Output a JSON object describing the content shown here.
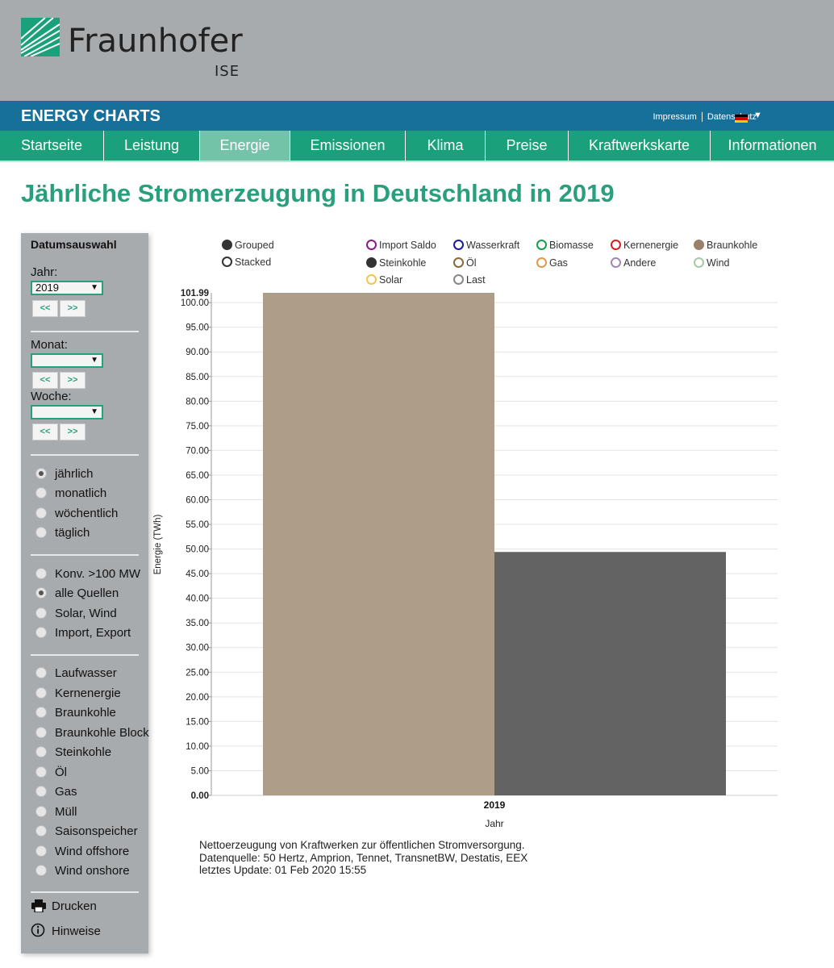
{
  "header": {
    "logo_name": "Fraunhofer",
    "logo_sub": "ISE",
    "brand": "ENERGY CHARTS",
    "links": [
      "Impressum",
      "Datenschutz"
    ],
    "flag_colors": [
      "#000000",
      "#dd0000",
      "#ffce00"
    ],
    "lang_arrow": "▼"
  },
  "nav": {
    "items": [
      {
        "label": "Startseite",
        "width": 129
      },
      {
        "label": "Leistung",
        "width": 119
      },
      {
        "label": "Energie",
        "width": 112,
        "active": true
      },
      {
        "label": "Emissionen",
        "width": 143
      },
      {
        "label": "Klima",
        "width": 99
      },
      {
        "label": "Preise",
        "width": 103
      },
      {
        "label": "Kraftwerkskarte",
        "width": 176
      },
      {
        "label": "Informationen",
        "width": 153
      }
    ]
  },
  "page_title": "Jährliche Stromerzeugung in Deutschland in 2019",
  "sidebar": {
    "title": "Datumsauswahl",
    "jahr_label": "Jahr:",
    "jahr_value": "2019",
    "monat_label": "Monat:",
    "monat_value": "",
    "woche_label": "Woche:",
    "woche_value": "",
    "prev": "<<",
    "next": ">>",
    "interval_options": [
      {
        "label": "jährlich",
        "checked": true
      },
      {
        "label": "monatlich",
        "checked": false
      },
      {
        "label": "wöchentlich",
        "checked": false
      },
      {
        "label": "täglich",
        "checked": false
      }
    ],
    "source_options": [
      {
        "label": "Konv. >100 MW",
        "checked": false
      },
      {
        "label": "alle Quellen",
        "checked": true
      },
      {
        "label": "Solar, Wind",
        "checked": false
      },
      {
        "label": "Import, Export",
        "checked": false
      }
    ],
    "type_options": [
      {
        "label": "Laufwasser"
      },
      {
        "label": "Kernenergie"
      },
      {
        "label": "Braunkohle"
      },
      {
        "label": "Braunkohle Block"
      },
      {
        "label": "Steinkohle"
      },
      {
        "label": "Öl"
      },
      {
        "label": "Gas"
      },
      {
        "label": "Müll"
      },
      {
        "label": "Saisonspeicher"
      },
      {
        "label": "Wind offshore"
      },
      {
        "label": "Wind onshore"
      }
    ],
    "print_label": "Drucken",
    "hints_label": "Hinweise"
  },
  "chart_data": {
    "type": "bar",
    "categories": [
      "2019"
    ],
    "series": [
      {
        "name": "Braunkohle",
        "values": [
          101.99
        ],
        "color": "#ae9e89"
      },
      {
        "name": "Steinkohle",
        "values": [
          49.4
        ],
        "color": "#636363"
      }
    ],
    "xlabel": "Jahr",
    "ylabel": "Energie (TWh)",
    "ylim": [
      0,
      101.99
    ],
    "ymax_label": "101.99",
    "yticks": [
      "0.00",
      "5.00",
      "10.00",
      "15.00",
      "20.00",
      "25.00",
      "30.00",
      "35.00",
      "40.00",
      "45.00",
      "50.00",
      "55.00",
      "60.00",
      "65.00",
      "70.00",
      "75.00",
      "80.00",
      "85.00",
      "90.00",
      "95.00",
      "100.00"
    ],
    "grid": true,
    "mode_options": [
      {
        "name": "Grouped",
        "filled": true,
        "color": "#333333"
      },
      {
        "name": "Stacked",
        "filled": false,
        "color": "#333333"
      }
    ],
    "legend": [
      {
        "name": "Import Saldo",
        "color": "#8b1a8b",
        "filled": false
      },
      {
        "name": "Wasserkraft",
        "color": "#1a1a9e",
        "filled": false
      },
      {
        "name": "Biomasse",
        "color": "#1a9e4a",
        "filled": false
      },
      {
        "name": "Kernenergie",
        "color": "#d42020",
        "filled": false
      },
      {
        "name": "Braunkohle",
        "color": "#9a8068",
        "filled": true
      },
      {
        "name": "Steinkohle",
        "color": "#333333",
        "filled": true
      },
      {
        "name": "Öl",
        "color": "#8b6a3a",
        "filled": false
      },
      {
        "name": "Gas",
        "color": "#e09a4a",
        "filled": false
      },
      {
        "name": "Andere",
        "color": "#a08ab0",
        "filled": false
      },
      {
        "name": "Wind",
        "color": "#a8c8a8",
        "filled": false
      },
      {
        "name": "Solar",
        "color": "#f0c850",
        "filled": false
      },
      {
        "name": "Last",
        "color": "#888888",
        "filled": false
      }
    ]
  },
  "notes": {
    "line1": "Nettoerzeugung von Kraftwerken zur öffentlichen Stromversorgung.",
    "line2": "Datenquelle: 50 Hertz, Amprion, Tennet, TransnetBW, Destatis, EEX",
    "line3": "letztes Update: 01 Feb 2020 15:55"
  }
}
